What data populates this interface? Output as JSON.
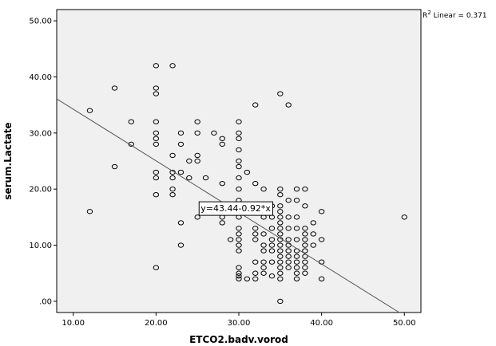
{
  "chart_data": {
    "type": "scatter",
    "xlabel": "ETCO2.badv.vorod",
    "ylabel": "serum.Lactate",
    "xlim": [
      8,
      52
    ],
    "ylim": [
      -2,
      52
    ],
    "xticks": [
      10,
      20,
      30,
      40,
      50
    ],
    "yticks": [
      0,
      10,
      20,
      30,
      40,
      50
    ],
    "xtick_labels": [
      "10.00",
      "20.00",
      "30.00",
      "40.00",
      "50.00"
    ],
    "ytick_labels": [
      ".00",
      "10.00",
      "20.00",
      "30.00",
      "40.00",
      "50.00"
    ],
    "grid": false,
    "r2_label": "R",
    "r2_sup": "2",
    "r2_text": " Linear = 0.371",
    "fit": {
      "intercept": 43.44,
      "slope": -0.92,
      "label": "y=43.44-0.92*x",
      "label_anchor": [
        25.2,
        16.6
      ]
    },
    "colors": {
      "plot_bg": "#f0f0f0",
      "marker": "#000000",
      "line": "#555555",
      "label_box": "#ffffff"
    },
    "points": [
      [
        12,
        34
      ],
      [
        12,
        16
      ],
      [
        15,
        38
      ],
      [
        15,
        24
      ],
      [
        17,
        32
      ],
      [
        17,
        28
      ],
      [
        20,
        42
      ],
      [
        20,
        38
      ],
      [
        20,
        37
      ],
      [
        20,
        32
      ],
      [
        20,
        30
      ],
      [
        20,
        29
      ],
      [
        20,
        28
      ],
      [
        20,
        23
      ],
      [
        20,
        22
      ],
      [
        20,
        19
      ],
      [
        20,
        6
      ],
      [
        22,
        42
      ],
      [
        22,
        26
      ],
      [
        22,
        23
      ],
      [
        22,
        22
      ],
      [
        22,
        20
      ],
      [
        22,
        19
      ],
      [
        23,
        30
      ],
      [
        23,
        28
      ],
      [
        23,
        23
      ],
      [
        23,
        14
      ],
      [
        23,
        10
      ],
      [
        24,
        25
      ],
      [
        24,
        22
      ],
      [
        25,
        32
      ],
      [
        25,
        30
      ],
      [
        25,
        26
      ],
      [
        25,
        25
      ],
      [
        25,
        15
      ],
      [
        26,
        22
      ],
      [
        26,
        16
      ],
      [
        27,
        30
      ],
      [
        28,
        29
      ],
      [
        28,
        28
      ],
      [
        28,
        21
      ],
      [
        28,
        15
      ],
      [
        28,
        14
      ],
      [
        29,
        11
      ],
      [
        30,
        32
      ],
      [
        30,
        30
      ],
      [
        30,
        29
      ],
      [
        30,
        27
      ],
      [
        30,
        25
      ],
      [
        30,
        24
      ],
      [
        30,
        22
      ],
      [
        30,
        20
      ],
      [
        30,
        18
      ],
      [
        30,
        15
      ],
      [
        30,
        13
      ],
      [
        30,
        12
      ],
      [
        30,
        11
      ],
      [
        30,
        10
      ],
      [
        30,
        9
      ],
      [
        30,
        6
      ],
      [
        30,
        5
      ],
      [
        30,
        4.5
      ],
      [
        30,
        4
      ],
      [
        31,
        23
      ],
      [
        31,
        16
      ],
      [
        31,
        4
      ],
      [
        32,
        35
      ],
      [
        32,
        21
      ],
      [
        32,
        17
      ],
      [
        32,
        13
      ],
      [
        32,
        12
      ],
      [
        32,
        11
      ],
      [
        32,
        7
      ],
      [
        32,
        5
      ],
      [
        32,
        4
      ],
      [
        33,
        20
      ],
      [
        33,
        16
      ],
      [
        33,
        15
      ],
      [
        33,
        12
      ],
      [
        33,
        10
      ],
      [
        33,
        9
      ],
      [
        33,
        7
      ],
      [
        33,
        6
      ],
      [
        33,
        5
      ],
      [
        34,
        17
      ],
      [
        34,
        15
      ],
      [
        34,
        13
      ],
      [
        34,
        11
      ],
      [
        34,
        10
      ],
      [
        34,
        9
      ],
      [
        34,
        7
      ],
      [
        34,
        4.5
      ],
      [
        35,
        37
      ],
      [
        35,
        20
      ],
      [
        35,
        19
      ],
      [
        35,
        17
      ],
      [
        35,
        16
      ],
      [
        35,
        15
      ],
      [
        35,
        14
      ],
      [
        35,
        13
      ],
      [
        35,
        12
      ],
      [
        35,
        11
      ],
      [
        35,
        10
      ],
      [
        35,
        9
      ],
      [
        35,
        8
      ],
      [
        35,
        7
      ],
      [
        35,
        6
      ],
      [
        35,
        5
      ],
      [
        35,
        4
      ],
      [
        35,
        0
      ],
      [
        36,
        35
      ],
      [
        36,
        18
      ],
      [
        36,
        15
      ],
      [
        36,
        13
      ],
      [
        36,
        11
      ],
      [
        36,
        10
      ],
      [
        36,
        9
      ],
      [
        36,
        8
      ],
      [
        36,
        7
      ],
      [
        36,
        6
      ],
      [
        37,
        20
      ],
      [
        37,
        18
      ],
      [
        37,
        15
      ],
      [
        37,
        13
      ],
      [
        37,
        11
      ],
      [
        37,
        9
      ],
      [
        37,
        8
      ],
      [
        37,
        7
      ],
      [
        37,
        6
      ],
      [
        37,
        5
      ],
      [
        37,
        4
      ],
      [
        38,
        20
      ],
      [
        38,
        17
      ],
      [
        38,
        13
      ],
      [
        38,
        12
      ],
      [
        38,
        11
      ],
      [
        38,
        10
      ],
      [
        38,
        9
      ],
      [
        38,
        8
      ],
      [
        38,
        7
      ],
      [
        38,
        6
      ],
      [
        38,
        5
      ],
      [
        39,
        14
      ],
      [
        39,
        12
      ],
      [
        39,
        10
      ],
      [
        40,
        16
      ],
      [
        40,
        11
      ],
      [
        40,
        7
      ],
      [
        40,
        4
      ],
      [
        50,
        15
      ]
    ]
  }
}
